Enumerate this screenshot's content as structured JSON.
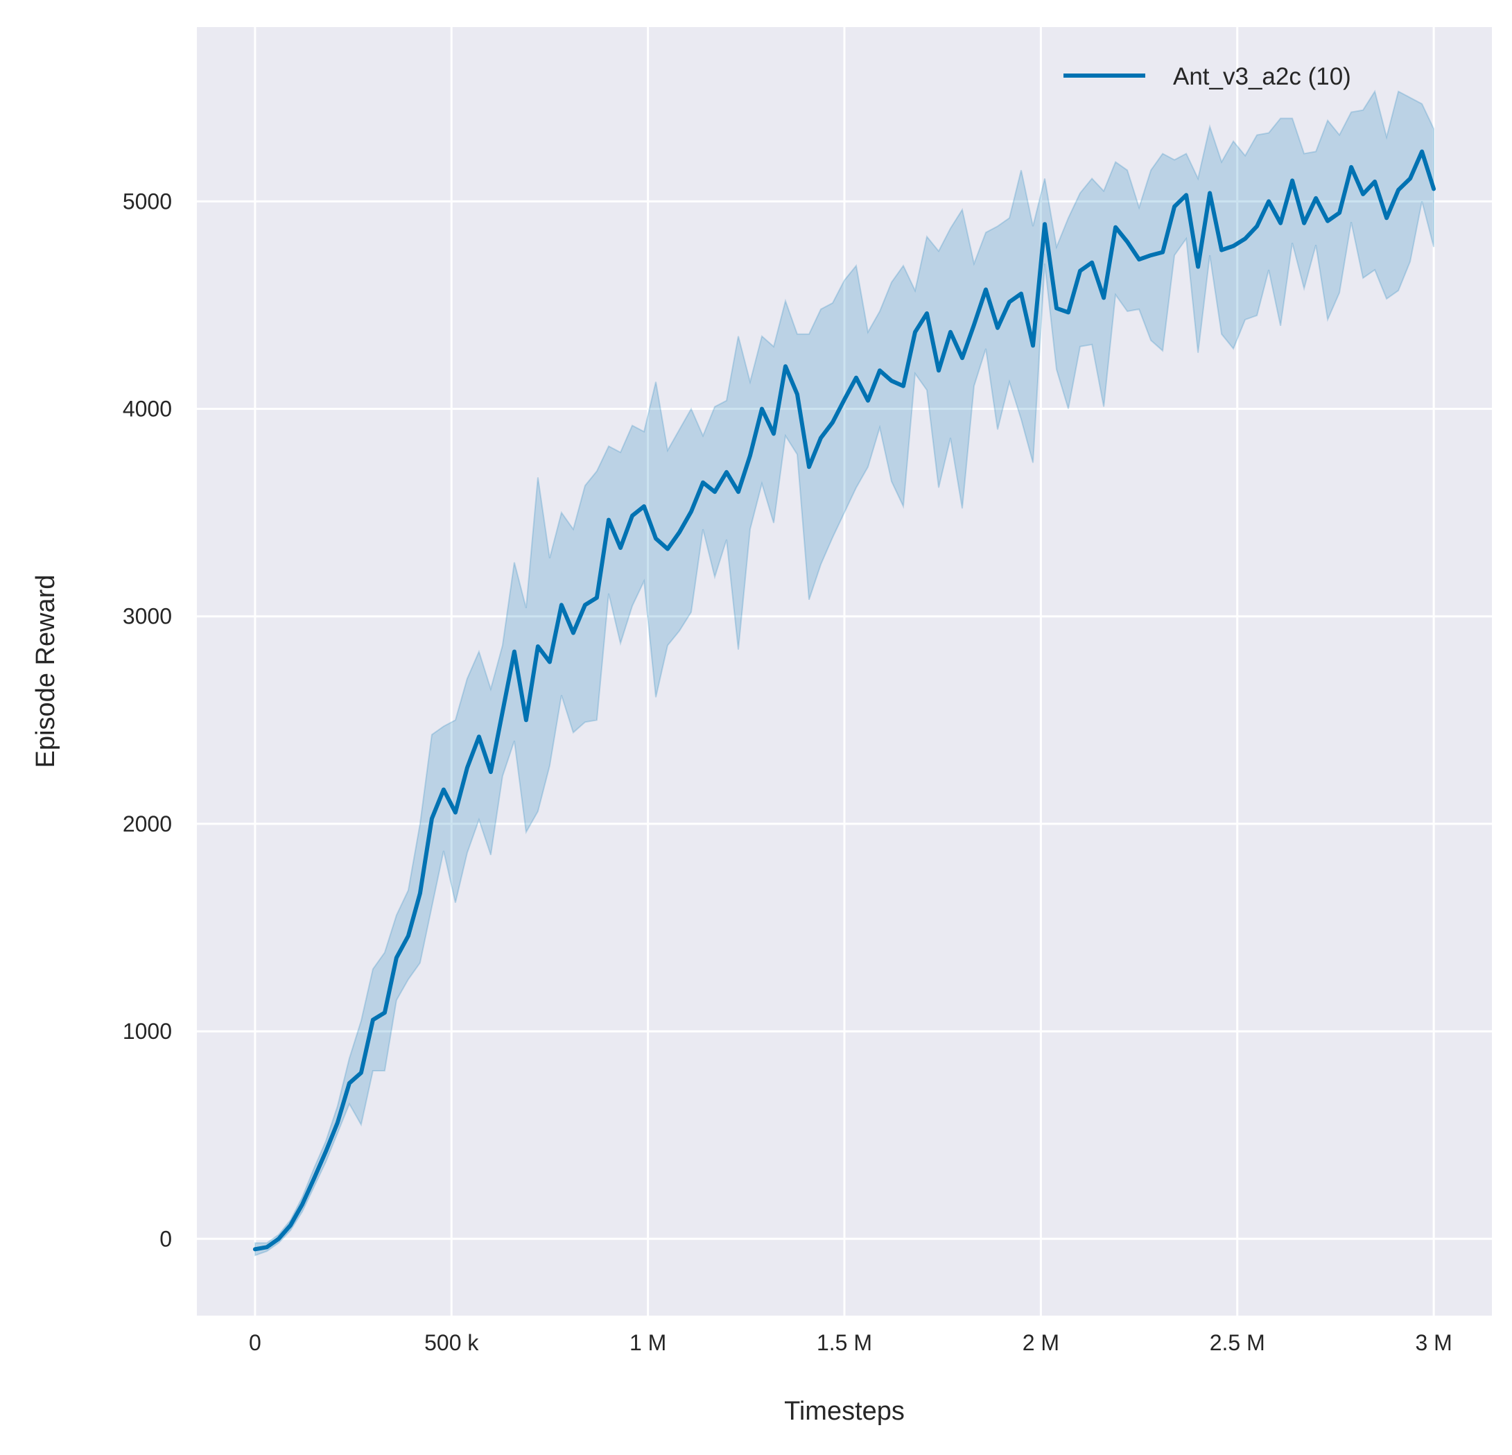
{
  "chart_data": {
    "type": "line",
    "title": "",
    "xlabel": "Timesteps",
    "ylabel": "Episode Reward",
    "xlim": [
      -148000,
      3148000
    ],
    "ylim": [
      -370,
      5840
    ],
    "grid": true,
    "background_color": "#eaeaf2",
    "grid_color": "#ffffff",
    "legend_placement": "top-right",
    "xticks": [
      0,
      500000,
      1000000,
      1500000,
      2000000,
      2500000,
      3000000
    ],
    "xtick_labels": [
      "0",
      "500 k",
      "1 M",
      "1.5 M",
      "2 M",
      "2.5 M",
      "3 M"
    ],
    "yticks": [
      0,
      1000,
      2000,
      3000,
      4000,
      5000
    ],
    "ytick_labels": [
      "0",
      "1000",
      "2000",
      "3000",
      "4000",
      "5000"
    ],
    "series": [
      {
        "name": "Ant_v3_a2c (10)",
        "color": "#0072b2",
        "band_color": "#0072b2",
        "x": [
          0,
          30000,
          60000,
          90000,
          120000,
          150000,
          180000,
          210000,
          240000,
          270000,
          300000,
          330000,
          360000,
          390000,
          420000,
          450000,
          480000,
          510000,
          540000,
          570000,
          600000,
          630000,
          660000,
          690000,
          720000,
          750000,
          780000,
          810000,
          840000,
          870000,
          900000,
          930000,
          960000,
          990000,
          1020000,
          1050000,
          1080000,
          1110000,
          1140000,
          1170000,
          1200000,
          1230000,
          1260000,
          1290000,
          1320000,
          1350000,
          1380000,
          1410000,
          1440000,
          1470000,
          1500000,
          1530000,
          1560000,
          1590000,
          1620000,
          1650000,
          1680000,
          1710000,
          1740000,
          1770000,
          1800000,
          1830000,
          1860000,
          1890000,
          1920000,
          1950000,
          1980000,
          2010000,
          2040000,
          2070000,
          2100000,
          2130000,
          2160000,
          2190000,
          2220000,
          2250000,
          2280000,
          2310000,
          2340000,
          2370000,
          2400000,
          2430000,
          2460000,
          2490000,
          2520000,
          2550000,
          2580000,
          2610000,
          2640000,
          2670000,
          2700000,
          2730000,
          2760000,
          2790000,
          2820000,
          2850000,
          2880000,
          2910000,
          2940000,
          2970000,
          3000000
        ],
        "mean": [
          -50,
          -40,
          0,
          65,
          165,
          290,
          420,
          560,
          750,
          800,
          1055,
          1090,
          1355,
          1460,
          1665,
          2025,
          2165,
          2055,
          2270,
          2420,
          2250,
          2540,
          2830,
          2500,
          2855,
          2780,
          3055,
          2920,
          3055,
          3090,
          3465,
          3330,
          3485,
          3530,
          3375,
          3325,
          3405,
          3505,
          3645,
          3600,
          3695,
          3600,
          3775,
          4000,
          3880,
          4205,
          4070,
          3720,
          3860,
          3935,
          4045,
          4150,
          4040,
          4185,
          4135,
          4110,
          4370,
          4460,
          4185,
          4370,
          4245,
          4405,
          4575,
          4390,
          4515,
          4555,
          4305,
          4890,
          4485,
          4465,
          4665,
          4705,
          4535,
          4875,
          4805,
          4720,
          4740,
          4755,
          4975,
          5030,
          4685,
          5040,
          4765,
          4785,
          4820,
          4880,
          5000,
          4895,
          5100,
          4895,
          5015,
          4905,
          4945,
          5165,
          5035,
          5095,
          4920,
          5055,
          5110,
          5240,
          5060
        ],
        "lower": [
          -80,
          -60,
          -20,
          40,
          130,
          250,
          370,
          510,
          650,
          550,
          810,
          810,
          1150,
          1250,
          1330,
          1600,
          1870,
          1620,
          1860,
          2020,
          1850,
          2230,
          2400,
          1960,
          2060,
          2280,
          2620,
          2440,
          2490,
          2500,
          3110,
          2870,
          3050,
          3170,
          2610,
          2860,
          2930,
          3020,
          3420,
          3190,
          3370,
          2840,
          3420,
          3640,
          3450,
          3870,
          3780,
          3080,
          3250,
          3380,
          3500,
          3620,
          3720,
          3910,
          3650,
          3530,
          4170,
          4090,
          3620,
          3860,
          3520,
          4110,
          4290,
          3900,
          4130,
          3950,
          3740,
          4700,
          4190,
          4000,
          4300,
          4310,
          4010,
          4550,
          4470,
          4480,
          4330,
          4280,
          4740,
          4820,
          4270,
          4740,
          4360,
          4290,
          4430,
          4450,
          4670,
          4400,
          4800,
          4580,
          4790,
          4430,
          4560,
          4900,
          4630,
          4670,
          4530,
          4570,
          4710,
          5000,
          4780
        ],
        "upper": [
          -20,
          -20,
          20,
          90,
          200,
          340,
          470,
          640,
          870,
          1050,
          1300,
          1380,
          1560,
          1680,
          2000,
          2430,
          2470,
          2500,
          2700,
          2830,
          2650,
          2860,
          3260,
          3040,
          3670,
          3280,
          3500,
          3420,
          3630,
          3700,
          3820,
          3790,
          3920,
          3890,
          4130,
          3800,
          3900,
          4000,
          3870,
          4010,
          4040,
          4350,
          4130,
          4350,
          4300,
          4520,
          4360,
          4360,
          4480,
          4510,
          4620,
          4690,
          4370,
          4470,
          4610,
          4690,
          4570,
          4830,
          4760,
          4870,
          4960,
          4700,
          4850,
          4880,
          4920,
          5150,
          4880,
          5110,
          4780,
          4920,
          5040,
          5110,
          5050,
          5190,
          5150,
          4970,
          5150,
          5230,
          5200,
          5230,
          5110,
          5360,
          5190,
          5290,
          5220,
          5320,
          5330,
          5400,
          5400,
          5230,
          5240,
          5390,
          5320,
          5430,
          5440,
          5530,
          5310,
          5530,
          5500,
          5470,
          5350
        ]
      }
    ]
  }
}
